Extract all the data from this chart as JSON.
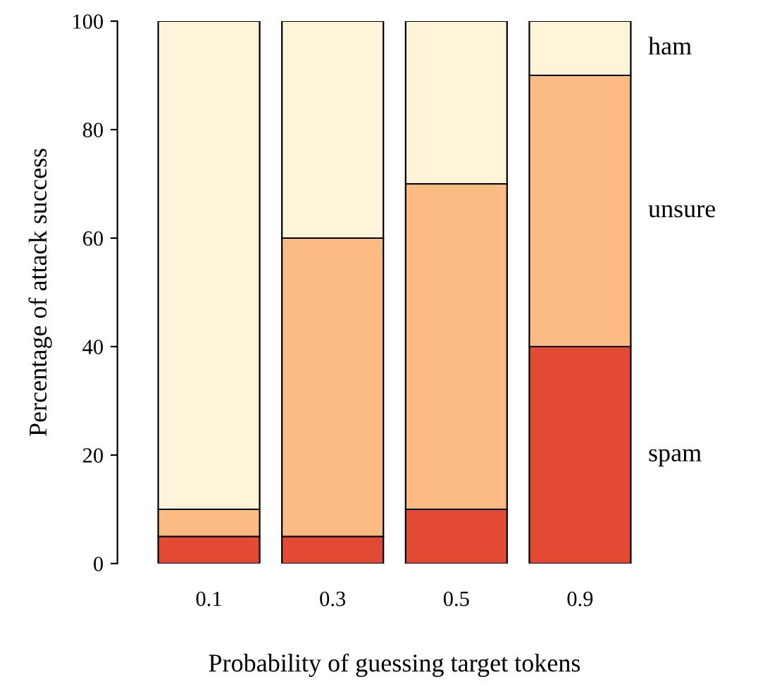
{
  "chart_data": {
    "type": "bar",
    "stacked": true,
    "xlabel": "Probability of guessing target tokens",
    "ylabel": "Percentage of attack success",
    "categories": [
      "0.1",
      "0.3",
      "0.5",
      "0.9"
    ],
    "series": [
      {
        "name": "spam",
        "color": "#e34a33",
        "values": [
          5,
          5,
          10,
          40
        ]
      },
      {
        "name": "unsure",
        "color": "#fdbb84",
        "values": [
          5,
          55,
          60,
          50
        ]
      },
      {
        "name": "ham",
        "color": "#fef4d9",
        "values": [
          90,
          40,
          30,
          10
        ]
      }
    ],
    "ylim": [
      0,
      100
    ],
    "yticks": [
      0,
      20,
      40,
      60,
      80,
      100
    ],
    "legend": false,
    "grid": false
  }
}
